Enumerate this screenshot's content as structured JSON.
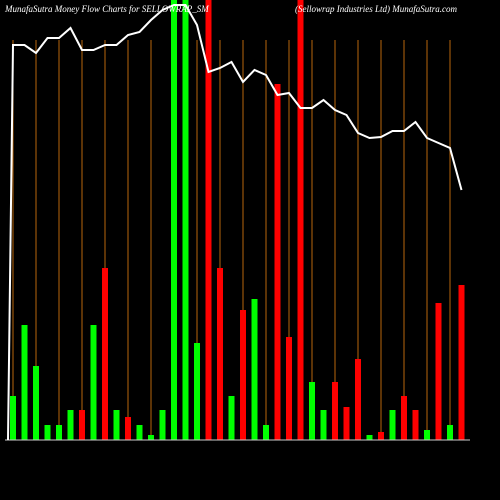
{
  "chart_data": {
    "type": "bar-line",
    "title": "MunafaSutra  Money Flow  Charts for SELLOWRAP_SM",
    "subtitle": "(Sellowrap Industries Ltd) MunafaSutra.com",
    "ylim": [
      0,
      440
    ],
    "bar_values": [
      44,
      115,
      74,
      15,
      15,
      30,
      30,
      115,
      172,
      30,
      23,
      15,
      5,
      30,
      440,
      440,
      97,
      440,
      172,
      44,
      130,
      141,
      15,
      356,
      103,
      440,
      58,
      30,
      58,
      33,
      81,
      5,
      8,
      30,
      44,
      30,
      10,
      137,
      15,
      155
    ],
    "bar_colors": [
      "#00ff00",
      "#00ff00",
      "#00ff00",
      "#00ff00",
      "#00ff00",
      "#00ff00",
      "#ff0000",
      "#00ff00",
      "#ff0000",
      "#00ff00",
      "#ff0000",
      "#00ff00",
      "#00ff00",
      "#00ff00",
      "#00ff00",
      "#00ff00",
      "#00ff00",
      "#ff0000",
      "#ff0000",
      "#00ff00",
      "#ff0000",
      "#00ff00",
      "#00ff00",
      "#ff0000",
      "#ff0000",
      "#ff0000",
      "#00ff00",
      "#00ff00",
      "#ff0000",
      "#ff0000",
      "#ff0000",
      "#00ff00",
      "#ff0000",
      "#00ff00",
      "#ff0000",
      "#ff0000",
      "#00ff00",
      "#ff0000",
      "#00ff00",
      "#ff0000"
    ],
    "line_values": [
      395,
      395,
      387,
      402,
      402,
      412,
      390,
      390,
      395,
      395,
      405,
      408,
      420,
      430,
      435,
      435,
      415,
      368,
      372,
      378,
      358,
      370,
      365,
      345,
      347,
      332,
      332,
      340,
      330,
      325,
      307,
      302,
      303,
      309,
      309,
      318,
      302,
      297,
      292,
      250
    ],
    "line_color": "#ffffff",
    "grid_color": "#b8660b"
  }
}
